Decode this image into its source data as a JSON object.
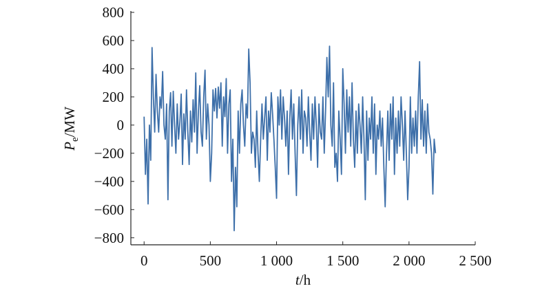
{
  "chart_data": {
    "type": "line",
    "ylabel": {
      "var": "P",
      "sub": "e",
      "unit": "/MW"
    },
    "xlabel": {
      "var": "t",
      "unit": "/h"
    },
    "xlim": [
      -100,
      2500
    ],
    "xticks": [
      0,
      500,
      {
        "value": 1000,
        "label": "1 000"
      },
      {
        "value": 1500,
        "label": "1 500"
      },
      {
        "value": 2000,
        "label": "2 000"
      },
      {
        "value": 2500,
        "label": "2 500"
      }
    ],
    "ylim": [
      -850,
      800
    ],
    "yticks": [
      {
        "value": -800,
        "label": "−800"
      },
      {
        "value": -600,
        "label": "−600"
      },
      {
        "value": -400,
        "label": "−400"
      },
      {
        "value": -200,
        "label": "−200"
      },
      0,
      200,
      400,
      600,
      800
    ],
    "x": [
      0,
      10,
      20,
      30,
      40,
      50,
      60,
      70,
      80,
      90,
      100,
      110,
      120,
      130,
      140,
      150,
      160,
      170,
      180,
      190,
      200,
      210,
      220,
      230,
      240,
      250,
      260,
      270,
      280,
      290,
      300,
      310,
      320,
      330,
      340,
      350,
      360,
      370,
      380,
      390,
      400,
      410,
      420,
      430,
      440,
      450,
      460,
      470,
      480,
      490,
      500,
      510,
      520,
      530,
      540,
      550,
      560,
      570,
      580,
      590,
      600,
      610,
      620,
      630,
      640,
      650,
      660,
      670,
      680,
      690,
      700,
      710,
      720,
      730,
      740,
      750,
      760,
      770,
      780,
      790,
      800,
      810,
      820,
      830,
      840,
      850,
      860,
      870,
      880,
      890,
      900,
      910,
      920,
      930,
      940,
      950,
      960,
      970,
      980,
      990,
      1000,
      1010,
      1020,
      1030,
      1040,
      1050,
      1060,
      1070,
      1080,
      1090,
      1100,
      1110,
      1120,
      1130,
      1140,
      1150,
      1160,
      1170,
      1180,
      1190,
      1200,
      1210,
      1220,
      1230,
      1240,
      1250,
      1260,
      1270,
      1280,
      1290,
      1300,
      1310,
      1320,
      1330,
      1340,
      1350,
      1360,
      1370,
      1380,
      1390,
      1400,
      1410,
      1420,
      1430,
      1440,
      1450,
      1460,
      1470,
      1480,
      1490,
      1500,
      1510,
      1520,
      1530,
      1540,
      1550,
      1560,
      1570,
      1580,
      1590,
      1600,
      1610,
      1620,
      1630,
      1640,
      1650,
      1660,
      1670,
      1680,
      1690,
      1700,
      1710,
      1720,
      1730,
      1740,
      1750,
      1760,
      1770,
      1780,
      1790,
      1800,
      1810,
      1820,
      1830,
      1840,
      1850,
      1860,
      1870,
      1880,
      1890,
      1900,
      1910,
      1920,
      1930,
      1940,
      1950,
      1960,
      1970,
      1980,
      1990,
      2000,
      2010,
      2020,
      2030,
      2040,
      2050,
      2060,
      2070,
      2080,
      2090,
      2100,
      2110,
      2120,
      2130,
      2140,
      2150,
      2160,
      2170,
      2180,
      2190,
      2200
    ],
    "color": "#3d6fa9",
    "values": [
      60,
      -350,
      -100,
      -560,
      0,
      -250,
      550,
      200,
      -50,
      360,
      100,
      -50,
      200,
      120,
      380,
      0,
      -100,
      150,
      -530,
      100,
      230,
      -150,
      240,
      0,
      -200,
      150,
      -100,
      20,
      220,
      -280,
      80,
      -100,
      250,
      -50,
      -280,
      100,
      -120,
      180,
      -50,
      370,
      -200,
      100,
      280,
      -50,
      -150,
      200,
      390,
      -100,
      150,
      0,
      -400,
      -200,
      250,
      100,
      260,
      50,
      270,
      120,
      300,
      -150,
      200,
      60,
      330,
      -200,
      150,
      250,
      -400,
      -100,
      -750,
      -300,
      -580,
      100,
      -200,
      150,
      250,
      0,
      -150,
      150,
      50,
      540,
      300,
      -200,
      -50,
      -100,
      -300,
      100,
      -200,
      -400,
      -100,
      150,
      -100,
      50,
      200,
      -250,
      100,
      -50,
      230,
      80,
      -100,
      -300,
      -520,
      200,
      0,
      250,
      -100,
      200,
      50,
      -150,
      100,
      -350,
      50,
      250,
      -100,
      150,
      -200,
      -500,
      0,
      200,
      -100,
      250,
      -200,
      100,
      50,
      -150,
      200,
      -50,
      -250,
      150,
      -100,
      200,
      0,
      -300,
      150,
      -50,
      -100,
      200,
      -200,
      100,
      480,
      200,
      560,
      0,
      -150,
      300,
      -300,
      -200,
      -400,
      100,
      -100,
      -350,
      400,
      150,
      -200,
      250,
      -50,
      200,
      -150,
      300,
      -100,
      -300,
      100,
      -200,
      150,
      0,
      -200,
      200,
      -100,
      -530,
      100,
      -250,
      50,
      -100,
      200,
      -200,
      150,
      -350,
      0,
      -100,
      100,
      -150,
      50,
      -300,
      -580,
      -200,
      100,
      -250,
      150,
      -100,
      200,
      -350,
      50,
      -200,
      100,
      -150,
      200,
      0,
      -250,
      100,
      -200,
      -530,
      -300,
      200,
      -200,
      50,
      -150,
      100,
      -200,
      200,
      450,
      -100,
      180,
      -150,
      100,
      -200,
      150,
      -50,
      -100,
      -200,
      -490,
      -100,
      -200
    ]
  }
}
